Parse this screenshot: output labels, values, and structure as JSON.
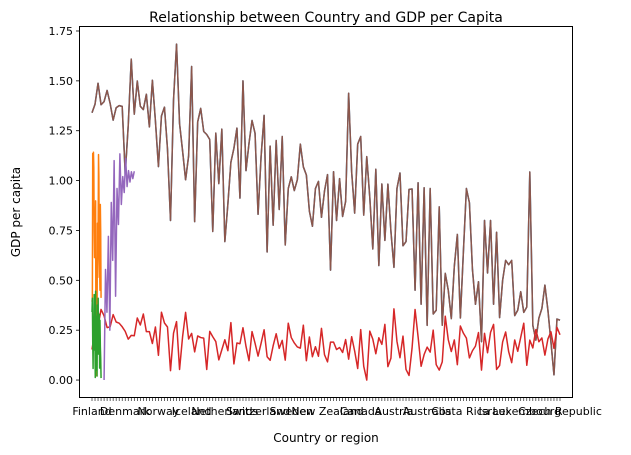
{
  "chart_data": {
    "type": "line",
    "title": "Relationship between Country and GDP per Capita",
    "xlabel": "Country or region",
    "ylabel": "GDP per capita",
    "ylim": [
      -0.085,
      1.77
    ],
    "y_ticks": [
      0.0,
      0.25,
      0.5,
      0.75,
      1.0,
      1.25,
      1.5,
      1.75
    ],
    "y_tick_labels": [
      "0.00",
      "0.25",
      "0.50",
      "0.75",
      "1.00",
      "1.25",
      "1.50",
      "1.75"
    ],
    "x_tick_labels_visible": [
      "Finland",
      "Denmark",
      "Norway",
      "Iceland",
      "Netherlands",
      "Switzerland",
      "Sweden",
      "New Zealand",
      "Canada",
      "Austria",
      "Australia",
      "Costa Rica",
      "Israel",
      "Luxembourg",
      "Czech Republic"
    ],
    "x_count": 156,
    "legend": "none",
    "grid": false,
    "series": [
      {
        "color": "#1f77b4",
        "x_start": 0,
        "x_end": 155,
        "values": [
          1.34,
          1.383,
          1.488,
          1.38,
          1.396,
          1.452,
          1.387,
          1.303,
          1.365,
          1.376,
          1.372,
          1.034,
          1.276,
          1.609,
          1.333,
          1.499,
          1.373,
          1.356,
          1.433,
          1.269,
          1.503,
          1.3,
          1.07,
          1.324,
          1.368,
          1.159,
          0.8,
          1.403,
          1.684,
          1.286,
          1.149,
          1.004,
          1.124,
          1.572,
          0.794,
          1.294,
          1.362,
          1.246,
          1.231,
          1.206,
          0.745,
          1.238,
          0.985,
          1.258,
          0.694,
          0.882,
          1.092,
          1.162,
          1.263,
          0.912,
          1.5,
          1.05,
          1.187,
          1.301,
          1.237,
          0.831,
          1.12,
          1.327,
          0.642,
          1.173,
          0.776,
          1.201,
          0.855,
          1.221,
          0.677,
          0.96,
          1.019,
          0.95,
          1.004,
          1.183,
          1.069,
          1.028,
          0.847,
          0.771,
          0.96,
          0.996,
          0.816,
          0.947,
          1.03,
          0.551,
          1.044,
          0.8,
          1.01,
          0.82,
          0.896,
          1.438,
          1.043,
          0.837,
          1.183,
          1.221,
          0.827,
          1.12,
          0.917,
          0.657,
          1.057,
          0.574,
          0.983,
          0.7,
          0.982,
          0.746,
          0.565,
          0.96,
          1.038,
          0.673,
          0.694,
          0.956,
          0.958,
          0.45,
          0.989,
          0.38,
          0.964,
          0.274,
          0.96,
          0.331,
          0.35,
          0.868,
          0.275,
          0.535,
          0.45,
          0.308,
          0.57,
          0.73,
          0.311,
          0.642,
          0.96,
          0.889,
          0.555,
          0.38,
          0.493,
          0.192,
          0.8,
          0.537,
          0.8,
          0.38,
          0.741,
          0.313,
          0.5,
          0.6,
          0.578,
          0.6,
          0.323,
          0.35,
          0.443,
          0.339,
          0.366,
          1.043,
          0.274,
          0.2,
          0.31,
          0.359,
          0.476,
          0.35,
          0.191,
          0.026,
          0.306,
          0.3
        ]
      },
      {
        "color": "#8c564b",
        "x_start": 0,
        "x_end": 155,
        "values": [
          1.34,
          1.383,
          1.488,
          1.38,
          1.396,
          1.452,
          1.387,
          1.303,
          1.365,
          1.376,
          1.372,
          1.034,
          1.276,
          1.609,
          1.333,
          1.499,
          1.373,
          1.356,
          1.433,
          1.269,
          1.503,
          1.3,
          1.07,
          1.324,
          1.368,
          1.159,
          0.8,
          1.403,
          1.684,
          1.286,
          1.149,
          1.004,
          1.124,
          1.572,
          0.794,
          1.294,
          1.362,
          1.246,
          1.231,
          1.206,
          0.745,
          1.238,
          0.985,
          1.258,
          0.694,
          0.882,
          1.092,
          1.162,
          1.263,
          0.912,
          1.5,
          1.05,
          1.187,
          1.301,
          1.237,
          0.831,
          1.12,
          1.327,
          0.642,
          1.173,
          0.776,
          1.201,
          0.855,
          1.221,
          0.677,
          0.96,
          1.019,
          0.95,
          1.004,
          1.183,
          1.069,
          1.028,
          0.847,
          0.771,
          0.96,
          0.996,
          0.816,
          0.947,
          1.03,
          0.551,
          1.044,
          0.8,
          1.01,
          0.82,
          0.896,
          1.438,
          1.043,
          0.837,
          1.183,
          1.221,
          0.827,
          1.12,
          0.917,
          0.657,
          1.057,
          0.574,
          0.983,
          0.7,
          0.982,
          0.746,
          0.565,
          0.96,
          1.038,
          0.673,
          0.694,
          0.956,
          0.958,
          0.45,
          0.989,
          0.38,
          0.964,
          0.274,
          0.96,
          0.331,
          0.35,
          0.868,
          0.275,
          0.535,
          0.45,
          0.308,
          0.57,
          0.73,
          0.311,
          0.642,
          0.96,
          0.889,
          0.555,
          0.38,
          0.493,
          0.192,
          0.8,
          0.537,
          0.8,
          0.38,
          0.741,
          0.313,
          0.5,
          0.6,
          0.578,
          0.6,
          0.323,
          0.35,
          0.443,
          0.339,
          0.366,
          1.043,
          0.274,
          0.2,
          0.31,
          0.359,
          0.476,
          0.35,
          0.191,
          0.026,
          0.306,
          0.3
        ]
      },
      {
        "color": "#d62728",
        "x_start": 0,
        "x_end": 155,
        "values": [
          0.153,
          0.252,
          0.271,
          0.354,
          0.322,
          0.263,
          0.267,
          0.328,
          0.291,
          0.285,
          0.267,
          0.244,
          0.205,
          0.224,
          0.222,
          0.311,
          0.276,
          0.331,
          0.243,
          0.243,
          0.183,
          0.266,
          0.124,
          0.34,
          0.286,
          0.266,
          0.047,
          0.235,
          0.293,
          0.053,
          0.217,
          0.339,
          0.206,
          0.234,
          0.141,
          0.221,
          0.213,
          0.21,
          0.053,
          0.244,
          0.217,
          0.193,
          0.101,
          0.152,
          0.202,
          0.147,
          0.288,
          0.081,
          0.186,
          0.182,
          0.262,
          0.169,
          0.097,
          0.243,
          0.185,
          0.12,
          0.184,
          0.252,
          0.117,
          0.099,
          0.172,
          0.232,
          0.159,
          0.199,
          0.1,
          0.285,
          0.213,
          0.186,
          0.166,
          0.16,
          0.275,
          0.097,
          0.216,
          0.117,
          0.167,
          0.119,
          0.259,
          0.127,
          0.091,
          0.19,
          0.19,
          0.153,
          0.163,
          0.138,
          0.203,
          0.105,
          0.217,
          0.145,
          0.058,
          0.253,
          0.069,
          0.0,
          0.245,
          0.205,
          0.132,
          0.212,
          0.179,
          0.279,
          0.067,
          0.109,
          0.357,
          0.194,
          0.112,
          0.22,
          0.053,
          0.023,
          0.16,
          0.354,
          0.217,
          0.069,
          0.128,
          0.165,
          0.14,
          0.25,
          0.077,
          0.05,
          0.091,
          0.32,
          0.202,
          0.143,
          0.201,
          0.077,
          0.271,
          0.235,
          0.21,
          0.111,
          0.147,
          0.17,
          0.238,
          0.05,
          0.234,
          0.137,
          0.239,
          0.279,
          0.053,
          0.073,
          0.191,
          0.241,
          0.142,
          0.087,
          0.201,
          0.144,
          0.215,
          0.285,
          0.074,
          0.2,
          0.161,
          0.253,
          0.192,
          0.211,
          0.125,
          0.206,
          0.242,
          0.159,
          0.264,
          0.227
        ]
      },
      {
        "color": "#ff7f0e",
        "x_start": 0,
        "x_end": 3,
        "values": [
          0.393,
          0.41,
          1.136,
          0.876,
          1.142,
          1.065,
          0.744,
          0.614,
          0.862,
          0.731,
          0.898,
          0.021,
          0.436,
          0.61,
          0.3,
          0.786,
          0.515,
          0.76,
          1.13,
          1.023,
          0.65,
          0.57,
          0.45,
          0.88,
          0.74,
          0.412
        ]
      },
      {
        "color": "#2ca02c",
        "x_start": 0,
        "x_end": 3,
        "values": [
          0.341,
          0.41,
          0.197,
          0.058,
          0.289,
          0.15,
          0.428,
          0.371,
          0.215,
          0.013,
          0.445,
          0.05,
          0.32,
          0.272,
          0.02,
          0.376,
          0.15,
          0.41,
          0.13,
          0.26,
          0.33,
          0.06,
          0.3,
          0.17,
          0.11,
          0.01
        ]
      },
      {
        "color": "#9467bd",
        "x_start": 4,
        "x_end": 14,
        "values": [
          0.0,
          0.554,
          0.34,
          0.72,
          0.25,
          0.89,
          0.6,
          1.1,
          0.42,
          0.96,
          0.78,
          1.134,
          0.88,
          1.02,
          0.94,
          1.112,
          0.97,
          1.05,
          0.993,
          1.044,
          1.01,
          1.047
        ]
      }
    ]
  }
}
